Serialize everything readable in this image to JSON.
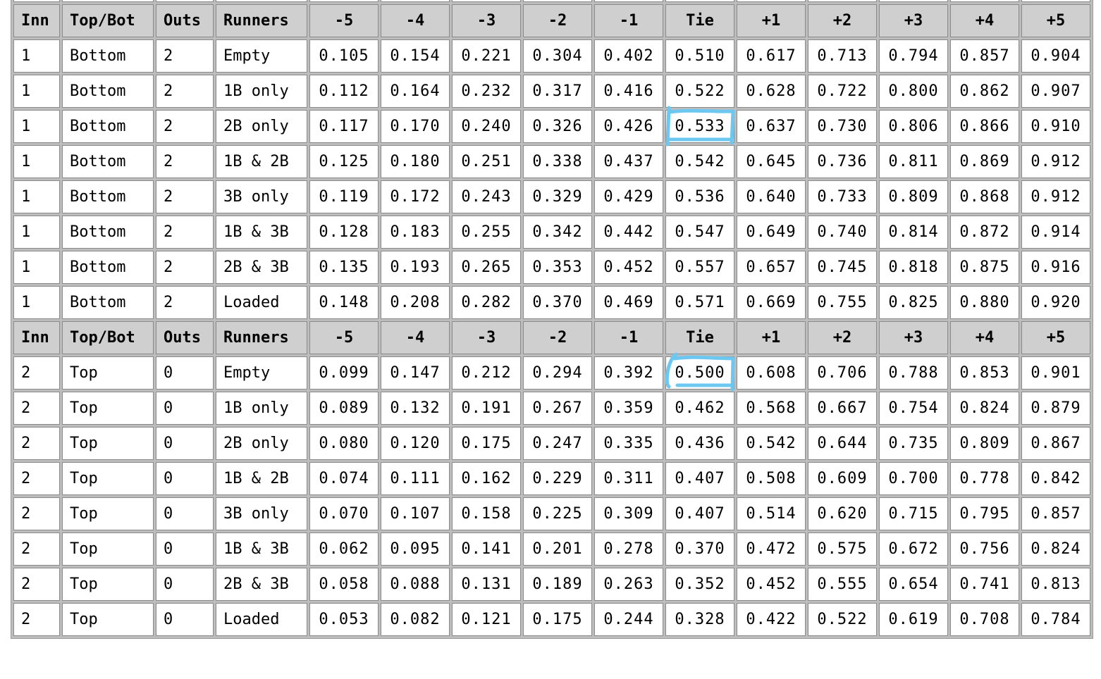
{
  "header": {
    "inn": "Inn",
    "top_bot": "Top/Bot",
    "outs": "Outs",
    "runners": "Runners",
    "diffs": [
      "-5",
      "-4",
      "-3",
      "-2",
      "-1",
      "Tie",
      "+1",
      "+2",
      "+3",
      "+4",
      "+5"
    ]
  },
  "sections": [
    {
      "rows": [
        {
          "inn": "1",
          "half": "Bottom",
          "outs": "2",
          "runners": "Empty",
          "values": [
            "0.105",
            "0.154",
            "0.221",
            "0.304",
            "0.402",
            "0.510",
            "0.617",
            "0.713",
            "0.794",
            "0.857",
            "0.904"
          ]
        },
        {
          "inn": "1",
          "half": "Bottom",
          "outs": "2",
          "runners": "1B only",
          "values": [
            "0.112",
            "0.164",
            "0.232",
            "0.317",
            "0.416",
            "0.522",
            "0.628",
            "0.722",
            "0.800",
            "0.862",
            "0.907"
          ]
        },
        {
          "inn": "1",
          "half": "Bottom",
          "outs": "2",
          "runners": "2B only",
          "values": [
            "0.117",
            "0.170",
            "0.240",
            "0.326",
            "0.426",
            "0.533",
            "0.637",
            "0.730",
            "0.806",
            "0.866",
            "0.910"
          ]
        },
        {
          "inn": "1",
          "half": "Bottom",
          "outs": "2",
          "runners": "1B & 2B",
          "values": [
            "0.125",
            "0.180",
            "0.251",
            "0.338",
            "0.437",
            "0.542",
            "0.645",
            "0.736",
            "0.811",
            "0.869",
            "0.912"
          ]
        },
        {
          "inn": "1",
          "half": "Bottom",
          "outs": "2",
          "runners": "3B only",
          "values": [
            "0.119",
            "0.172",
            "0.243",
            "0.329",
            "0.429",
            "0.536",
            "0.640",
            "0.733",
            "0.809",
            "0.868",
            "0.912"
          ]
        },
        {
          "inn": "1",
          "half": "Bottom",
          "outs": "2",
          "runners": "1B & 3B",
          "values": [
            "0.128",
            "0.183",
            "0.255",
            "0.342",
            "0.442",
            "0.547",
            "0.649",
            "0.740",
            "0.814",
            "0.872",
            "0.914"
          ]
        },
        {
          "inn": "1",
          "half": "Bottom",
          "outs": "2",
          "runners": "2B & 3B",
          "values": [
            "0.135",
            "0.193",
            "0.265",
            "0.353",
            "0.452",
            "0.557",
            "0.657",
            "0.745",
            "0.818",
            "0.875",
            "0.916"
          ]
        },
        {
          "inn": "1",
          "half": "Bottom",
          "outs": "2",
          "runners": "Loaded",
          "values": [
            "0.148",
            "0.208",
            "0.282",
            "0.370",
            "0.469",
            "0.571",
            "0.669",
            "0.755",
            "0.825",
            "0.880",
            "0.920"
          ]
        }
      ]
    },
    {
      "rows": [
        {
          "inn": "2",
          "half": "Top",
          "outs": "0",
          "runners": "Empty",
          "values": [
            "0.099",
            "0.147",
            "0.212",
            "0.294",
            "0.392",
            "0.500",
            "0.608",
            "0.706",
            "0.788",
            "0.853",
            "0.901"
          ]
        },
        {
          "inn": "2",
          "half": "Top",
          "outs": "0",
          "runners": "1B only",
          "values": [
            "0.089",
            "0.132",
            "0.191",
            "0.267",
            "0.359",
            "0.462",
            "0.568",
            "0.667",
            "0.754",
            "0.824",
            "0.879"
          ]
        },
        {
          "inn": "2",
          "half": "Top",
          "outs": "0",
          "runners": "2B only",
          "values": [
            "0.080",
            "0.120",
            "0.175",
            "0.247",
            "0.335",
            "0.436",
            "0.542",
            "0.644",
            "0.735",
            "0.809",
            "0.867"
          ]
        },
        {
          "inn": "2",
          "half": "Top",
          "outs": "0",
          "runners": "1B & 2B",
          "values": [
            "0.074",
            "0.111",
            "0.162",
            "0.229",
            "0.311",
            "0.407",
            "0.508",
            "0.609",
            "0.700",
            "0.778",
            "0.842"
          ]
        },
        {
          "inn": "2",
          "half": "Top",
          "outs": "0",
          "runners": "3B only",
          "values": [
            "0.070",
            "0.107",
            "0.158",
            "0.225",
            "0.309",
            "0.407",
            "0.514",
            "0.620",
            "0.715",
            "0.795",
            "0.857"
          ]
        },
        {
          "inn": "2",
          "half": "Top",
          "outs": "0",
          "runners": "1B & 3B",
          "values": [
            "0.062",
            "0.095",
            "0.141",
            "0.201",
            "0.278",
            "0.370",
            "0.472",
            "0.575",
            "0.672",
            "0.756",
            "0.824"
          ]
        },
        {
          "inn": "2",
          "half": "Top",
          "outs": "0",
          "runners": "2B & 3B",
          "values": [
            "0.058",
            "0.088",
            "0.131",
            "0.189",
            "0.263",
            "0.352",
            "0.452",
            "0.555",
            "0.654",
            "0.741",
            "0.813"
          ]
        },
        {
          "inn": "2",
          "half": "Top",
          "outs": "0",
          "runners": "Loaded",
          "values": [
            "0.053",
            "0.082",
            "0.121",
            "0.175",
            "0.244",
            "0.328",
            "0.422",
            "0.522",
            "0.619",
            "0.708",
            "0.784"
          ]
        }
      ]
    }
  ],
  "annotations": {
    "highlight_color": "#6cc8f0"
  }
}
